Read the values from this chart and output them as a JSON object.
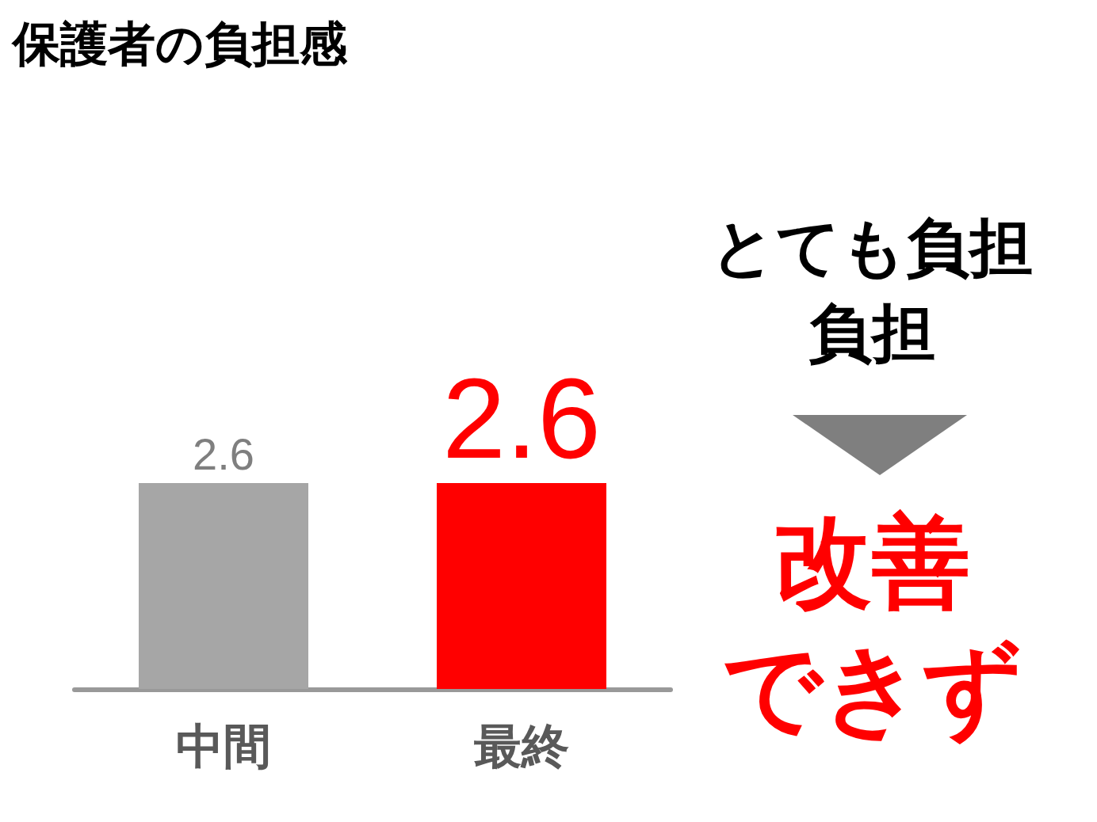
{
  "chart_data": {
    "type": "bar",
    "title": "保護者の負担感",
    "categories": [
      "中間",
      "最終"
    ],
    "values": [
      2.6,
      2.6
    ],
    "colors": [
      "#a6a6a6",
      "#ff0000"
    ],
    "data_labels": true,
    "annotations": [
      "とても負担",
      "負担",
      "改善",
      "できず"
    ]
  }
}
